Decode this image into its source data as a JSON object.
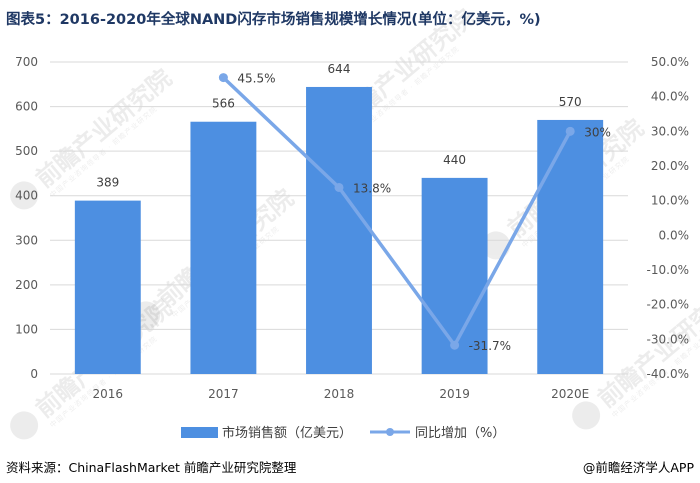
{
  "title": "图表5：2016-2020年全球NAND闪存市场销售规模增长情况(单位：亿美元，%)",
  "source": "资料来源：ChinaFlashMarket 前瞻产业研究院整理",
  "credit": "@前瞻经济学人APP",
  "watermark": {
    "text": "前瞻产业研究院",
    "sub": "中国产业咨询领导者 · 前瞻产业研究院"
  },
  "colors": {
    "bar": "#4d8fe1",
    "line": "#7aa7e8",
    "grid": "#d9d9d9",
    "axis_text": "#595959"
  },
  "chart_data": {
    "type": "bar+line",
    "categories": [
      "2016",
      "2017",
      "2018",
      "2019",
      "2020E"
    ],
    "series": [
      {
        "name": "市场销售额（亿美元）",
        "type": "bar",
        "axis": "left",
        "values": [
          389,
          566,
          644,
          440,
          570
        ],
        "labels": [
          "389",
          "566",
          "644",
          "440",
          "570"
        ]
      },
      {
        "name": "同比增加（%）",
        "type": "line",
        "axis": "right",
        "values": [
          null,
          45.5,
          13.8,
          -31.7,
          30
        ],
        "labels": [
          "",
          "45.5%",
          "13.8%",
          "-31.7%",
          "30%"
        ]
      }
    ],
    "y_left": {
      "min": 0,
      "max": 700,
      "step": 100,
      "ticks": [
        "0",
        "100",
        "200",
        "300",
        "400",
        "500",
        "600",
        "700"
      ]
    },
    "y_right": {
      "min": -40,
      "max": 50,
      "step": 10,
      "ticks": [
        "-40.0%",
        "-30.0%",
        "-20.0%",
        "-10.0%",
        "0.0%",
        "10.0%",
        "20.0%",
        "30.0%",
        "40.0%",
        "50.0%"
      ]
    },
    "grid": true,
    "legend_position": "bottom"
  }
}
